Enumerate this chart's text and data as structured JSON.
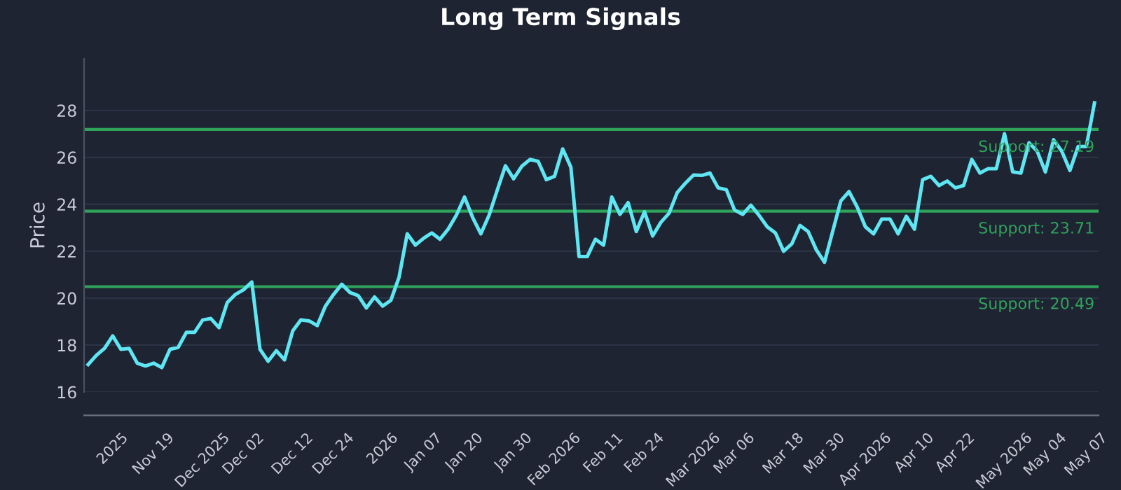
{
  "chart_data": {
    "type": "line",
    "title": "Long Term Signals",
    "ylabel": "Price",
    "categories": [
      null,
      null,
      null,
      "2025",
      null,
      null,
      null,
      null,
      "Nov 19",
      null,
      null,
      null,
      null,
      null,
      "Dec 2025",
      null,
      null,
      null,
      null,
      "Dec 02",
      null,
      null,
      null,
      null,
      null,
      "Dec 12",
      null,
      null,
      null,
      null,
      "Dec 24",
      null,
      null,
      null,
      null,
      null,
      "2026",
      null,
      null,
      null,
      null,
      "Jan 07",
      null,
      null,
      null,
      null,
      "Jan 20",
      null,
      null,
      null,
      null,
      null,
      "Jan 30",
      null,
      null,
      null,
      null,
      "Feb 2026",
      null,
      null,
      null,
      null,
      null,
      "Feb 11",
      null,
      null,
      null,
      null,
      "Feb 24",
      null,
      null,
      null,
      null,
      null,
      "Mar 2026",
      null,
      null,
      null,
      null,
      "Mar 06",
      null,
      null,
      null,
      null,
      null,
      "Mar 18",
      null,
      null,
      null,
      null,
      "Mar 30",
      null,
      null,
      null,
      null,
      "Apr 2026",
      null,
      null,
      null,
      null,
      null,
      "Apr 10",
      null,
      null,
      null,
      null,
      "Apr 22",
      null,
      null,
      null,
      null,
      null,
      "May 2026",
      null,
      null,
      null,
      null,
      "May 04",
      null,
      null,
      null,
      null,
      "May 07",
      null
    ],
    "series": [
      {
        "color": "#5ee6f2",
        "values": [
          17.17,
          17.56,
          17.86,
          18.39,
          17.82,
          17.86,
          17.23,
          17.11,
          17.23,
          17.04,
          17.82,
          17.9,
          18.54,
          18.54,
          19.07,
          19.13,
          18.74,
          19.81,
          20.16,
          20.36,
          20.69,
          17.82,
          17.31,
          17.76,
          17.37,
          18.6,
          19.07,
          19.03,
          18.83,
          19.66,
          20.16,
          20.59,
          20.24,
          20.11,
          19.58,
          20.05,
          19.66,
          19.91,
          20.89,
          22.74,
          22.26,
          22.55,
          22.78,
          22.51,
          22.94,
          23.53,
          24.31,
          23.43,
          22.74,
          23.53,
          24.6,
          25.64,
          25.09,
          25.62,
          25.91,
          25.83,
          25.05,
          25.19,
          26.36,
          25.58,
          21.77,
          21.77,
          22.51,
          22.26,
          24.31,
          23.57,
          24.07,
          22.84,
          23.68,
          22.65,
          23.23,
          23.62,
          24.5,
          24.9,
          25.25,
          25.23,
          25.33,
          24.7,
          24.62,
          23.76,
          23.57,
          23.96,
          23.53,
          23.04,
          22.78,
          22.0,
          22.31,
          23.1,
          22.84,
          22.06,
          21.53,
          22.84,
          24.15,
          24.54,
          23.88,
          23.04,
          22.74,
          23.37,
          23.37,
          22.74,
          23.49,
          22.94,
          25.05,
          25.19,
          24.8,
          24.99,
          24.7,
          24.8,
          25.91,
          25.33,
          25.52,
          25.52,
          27.01,
          25.38,
          25.33,
          26.62,
          26.26,
          25.38,
          26.75,
          26.26,
          25.44,
          26.46,
          26.46,
          28.32
        ]
      }
    ],
    "ylim": [
      16,
      30.2
    ],
    "yticks": [
      16,
      18,
      20,
      22,
      24,
      26,
      28
    ],
    "grid": "y",
    "marker": "none",
    "line_style": "solid",
    "ref_lines": [
      {
        "axis": "y",
        "value": 27.19,
        "label": "Support: 27.19",
        "color": "#2fa35a"
      },
      {
        "axis": "y",
        "value": 23.71,
        "label": "Support: 23.71",
        "color": "#2fa35a"
      },
      {
        "axis": "y",
        "value": 20.49,
        "label": "Support: 20.49",
        "color": "#2fa35a"
      }
    ]
  }
}
